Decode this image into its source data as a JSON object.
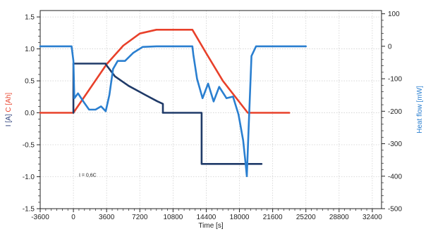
{
  "chart_data": {
    "type": "line",
    "title": "",
    "xlabel": "Time [s]",
    "ylabel_left_parts": [
      {
        "text": "I [A]",
        "color": "#2b3e7a"
      },
      {
        "text": " ",
        "color": "#2b3e7a"
      },
      {
        "text": "C [Ah]",
        "color": "#e8402a"
      }
    ],
    "ylabel_right_parts": [
      {
        "text": "Heat flow ",
        "color": "#2a7fd0"
      },
      {
        "text": "[mW]",
        "color": "#2a7fd0"
      }
    ],
    "xlim": [
      -3600,
      33400
    ],
    "ylim_left": [
      -1.5,
      1.6
    ],
    "ylim_right": [
      -500,
      110
    ],
    "x_ticks": [
      -3600,
      0,
      3600,
      7200,
      10800,
      14400,
      18000,
      21600,
      25200,
      28800,
      32400
    ],
    "x_tick_labels": [
      "-3600",
      "0",
      "3600",
      "7200",
      "10800",
      "14400",
      "18000",
      "21600",
      "25200",
      "28800",
      "32400"
    ],
    "y_left_ticks": [
      -1.5,
      -1.0,
      -0.5,
      0.0,
      0.5,
      1.0,
      1.5
    ],
    "y_left_tick_labels": [
      "-1.5",
      "-1.0",
      "-0.5",
      "0.0",
      "0.5",
      "1.0",
      "1.5"
    ],
    "y_right_ticks": [
      -500,
      -400,
      -300,
      -200,
      -100,
      0,
      100
    ],
    "y_right_tick_labels": [
      "-500",
      "-400",
      "-300",
      "-200",
      "-100",
      "0",
      "100"
    ],
    "grid": true,
    "annotation": "I = 0,6C",
    "annotation_position": {
      "x": 600,
      "y": -1.0
    },
    "series": [
      {
        "axis": "left",
        "color": "#e8402a",
        "x": [
          -3600,
          0,
          3600,
          5400,
          7200,
          9000,
          10800,
          12900,
          14400,
          16200,
          18900,
          23400
        ],
        "y": [
          0.0,
          0.0,
          0.76,
          1.05,
          1.24,
          1.3,
          1.3,
          1.3,
          0.93,
          0.5,
          0.0,
          0.0
        ]
      },
      {
        "axis": "left",
        "color": "#1f3a68",
        "x": [
          0,
          0,
          3500,
          3500,
          4500,
          6000,
          7800,
          9100,
          9700,
          9700,
          13900,
          13900,
          20400
        ],
        "y": [
          0.0,
          0.77,
          0.77,
          0.76,
          0.57,
          0.42,
          0.28,
          0.18,
          0.14,
          0.0,
          0.0,
          -0.8,
          -0.8
        ]
      },
      {
        "axis": "right",
        "color": "#2a7fd0",
        "x": [
          -3600,
          -200,
          0,
          100,
          500,
          1200,
          1700,
          2400,
          3000,
          3500,
          3900,
          4300,
          4800,
          5600,
          6500,
          7500,
          9000,
          12900,
          13000,
          13400,
          14000,
          14600,
          15200,
          15800,
          16600,
          17300,
          17900,
          18400,
          18700,
          18800,
          19000,
          19300,
          19800,
          21600,
          25200
        ],
        "y": [
          0,
          0,
          -45,
          -160,
          -145,
          -175,
          -195,
          -195,
          -185,
          -200,
          -150,
          -70,
          -45,
          -45,
          -20,
          -2,
          0,
          0,
          -25,
          -100,
          -160,
          -115,
          -170,
          -125,
          -160,
          -155,
          -210,
          -290,
          -370,
          -400,
          -250,
          -30,
          0,
          0,
          0
        ]
      }
    ]
  }
}
